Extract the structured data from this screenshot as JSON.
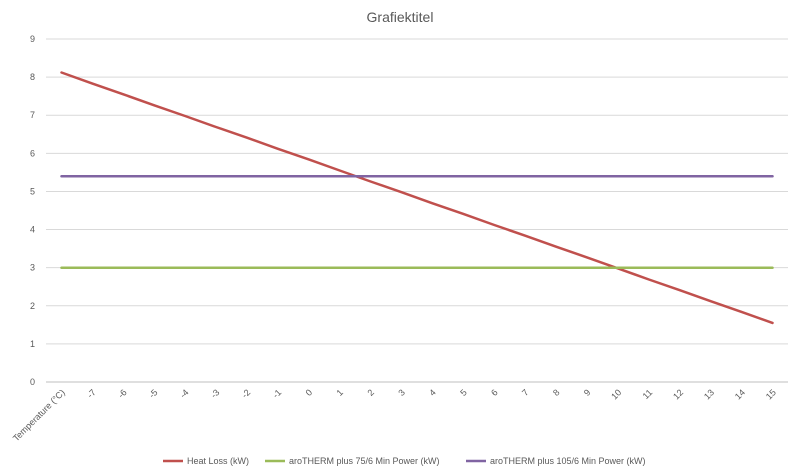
{
  "chart_data": {
    "type": "line",
    "title": "Grafiektitel",
    "categories": [
      "Temperature (°C)",
      "-7",
      "-6",
      "-5",
      "-4",
      "-3",
      "-2",
      "-1",
      "0",
      "1",
      "2",
      "3",
      "4",
      "5",
      "6",
      "7",
      "8",
      "9",
      "10",
      "11",
      "12",
      "13",
      "14",
      "15"
    ],
    "ylim": [
      0,
      9
    ],
    "yticks": [
      0,
      1,
      2,
      3,
      4,
      5,
      6,
      7,
      8,
      9
    ],
    "grid": true,
    "legend_position": "bottom",
    "series": [
      {
        "name": "Heat Loss (kW)",
        "color": "#c0504d",
        "values": [
          8.12,
          7.83,
          7.55,
          7.26,
          6.98,
          6.69,
          6.41,
          6.12,
          5.84,
          5.55,
          5.26,
          4.98,
          4.69,
          4.41,
          4.12,
          3.84,
          3.55,
          3.27,
          2.98,
          2.69,
          2.41,
          2.12,
          1.84,
          1.55
        ]
      },
      {
        "name": "aroTHERM plus 75/6 Min Power (kW)",
        "color": "#9bbb59",
        "values": [
          3,
          3,
          3,
          3,
          3,
          3,
          3,
          3,
          3,
          3,
          3,
          3,
          3,
          3,
          3,
          3,
          3,
          3,
          3,
          3,
          3,
          3,
          3,
          3
        ]
      },
      {
        "name": "aroTHERM plus 105/6 Min Power (kW)",
        "color": "#8064a2",
        "values": [
          5.4,
          5.4,
          5.4,
          5.4,
          5.4,
          5.4,
          5.4,
          5.4,
          5.4,
          5.4,
          5.4,
          5.4,
          5.4,
          5.4,
          5.4,
          5.4,
          5.4,
          5.4,
          5.4,
          5.4,
          5.4,
          5.4,
          5.4,
          5.4
        ]
      }
    ]
  }
}
